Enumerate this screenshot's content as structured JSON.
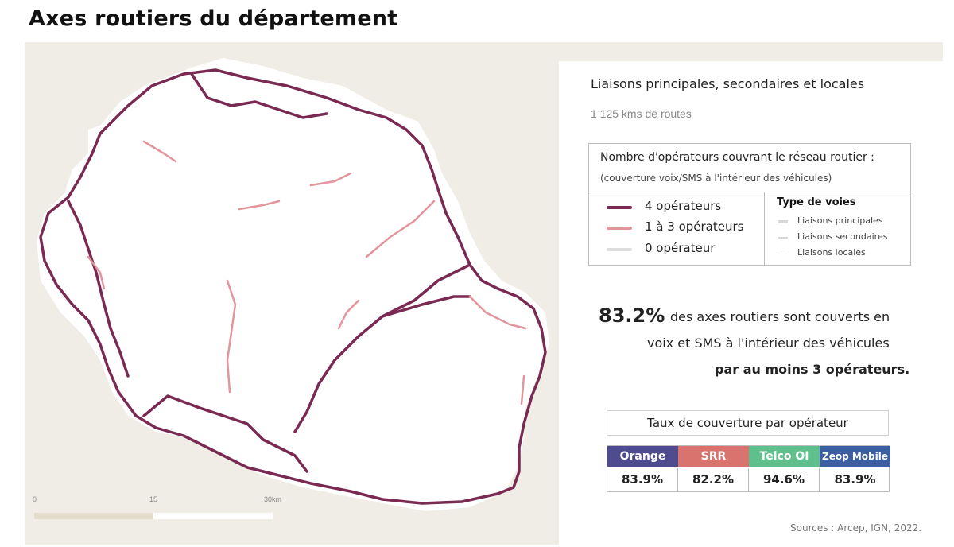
{
  "title": "Axes routiers du département",
  "panel": {
    "subtitle": "Liaisons principales, secondaires et locales",
    "total_roads": "1 125 kms de routes",
    "legend": {
      "heading": "Nombre d'opérateurs couvrant le réseau routier :",
      "subheading": "(couverture voix/SMS à l'intérieur des véhicules)",
      "operator_counts": [
        {
          "label": "4 opérateurs",
          "color": "#7a2a52"
        },
        {
          "label": "1 à 3 opérateurs",
          "color": "#e3959c"
        },
        {
          "label": "0 opérateur",
          "color": "#dddddd"
        }
      ],
      "road_types_title": "Type de voies",
      "road_types": [
        "Liaisons principales",
        "Liaisons secondaires",
        "Liaisons locales"
      ]
    },
    "stat": {
      "percent": "83.2%",
      "line1": "des axes routiers sont couverts en",
      "line2": "voix et SMS à l'intérieur des véhicules",
      "line3": "par au moins 3 opérateurs."
    },
    "coverage": {
      "heading": "Taux de couverture par opérateur",
      "operators": [
        {
          "name": "Orange",
          "value": "83.9%",
          "color": "#4e4b8f"
        },
        {
          "name": "SRR",
          "value": "82.2%",
          "color": "#d9736d"
        },
        {
          "name": "Telco OI",
          "value": "94.6%",
          "color": "#5fbf8d"
        },
        {
          "name": "Zeop Mobile",
          "value": "83.9%",
          "color": "#3b5fa0"
        }
      ]
    },
    "source": "Sources : Arcep, IGN, 2022."
  },
  "scale": {
    "labels": [
      "0",
      "15",
      "30km"
    ]
  },
  "colors": {
    "four_ops": "#7a2a52",
    "some_ops": "#e3959c",
    "island": "#ffffff",
    "sea": "#f0ede6"
  }
}
